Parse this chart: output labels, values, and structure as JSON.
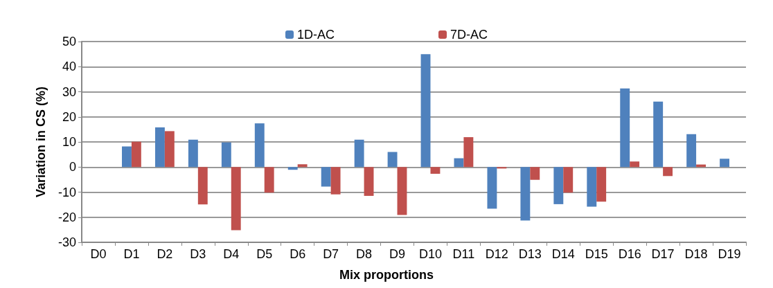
{
  "chart_data": {
    "type": "bar",
    "xlabel": "Mix proportions",
    "ylabel": "Variation in CS (%)",
    "categories": [
      "D0",
      "D1",
      "D2",
      "D3",
      "D4",
      "D5",
      "D6",
      "D7",
      "D8",
      "D9",
      "D10",
      "D11",
      "D12",
      "D13",
      "D14",
      "D15",
      "D16",
      "D17",
      "D18",
      "D19"
    ],
    "series": [
      {
        "name": "1D-AC",
        "color": "#4f81bd",
        "values": [
          0,
          8.2,
          15.8,
          10.9,
          9.8,
          17.4,
          -1.1,
          -7.8,
          10.9,
          6,
          45,
          3.5,
          -16.6,
          -21.3,
          -14.8,
          -15.8,
          31.3,
          26.1,
          13.1,
          3.3
        ]
      },
      {
        "name": "7D-AC",
        "color": "#c0504d",
        "values": [
          0,
          10.1,
          14.3,
          -14.9,
          -25.2,
          -10.2,
          1.1,
          -10.9,
          -11.5,
          -19.1,
          -2.7,
          11.9,
          -0.6,
          -5.1,
          -10.2,
          -13.8,
          2.2,
          -3.6,
          1,
          0
        ]
      }
    ],
    "ylim": [
      -30,
      50
    ],
    "yticks": [
      -30,
      -20,
      -10,
      0,
      10,
      20,
      30,
      40,
      50
    ],
    "grid": "y",
    "legend": "top"
  }
}
